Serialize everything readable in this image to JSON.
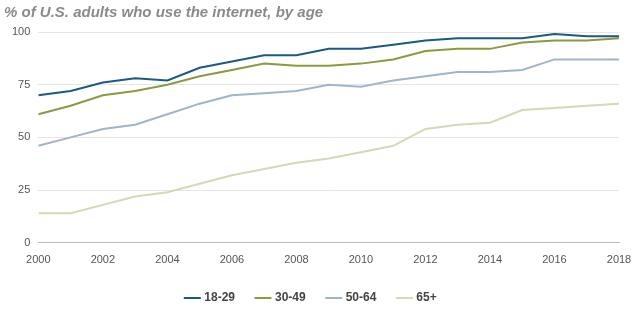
{
  "chart_data": {
    "type": "line",
    "title": "% of U.S. adults who use the internet, by age",
    "x": [
      2000,
      2001,
      2002,
      2003,
      2004,
      2005,
      2006,
      2007,
      2008,
      2009,
      2010,
      2011,
      2012,
      2013,
      2014,
      2015,
      2016,
      2017,
      2018
    ],
    "series": [
      {
        "name": "18-29",
        "color": "#1b5a82",
        "values": [
          70,
          72,
          76,
          78,
          77,
          83,
          86,
          89,
          89,
          92,
          92,
          94,
          96,
          97,
          97,
          97,
          99,
          98,
          98
        ]
      },
      {
        "name": "30-49",
        "color": "#8a9a3f",
        "values": [
          61,
          65,
          70,
          72,
          75,
          79,
          82,
          85,
          84,
          84,
          85,
          87,
          91,
          92,
          92,
          95,
          96,
          96,
          97
        ]
      },
      {
        "name": "50-64",
        "color": "#9fb5cb",
        "values": [
          46,
          50,
          54,
          56,
          61,
          66,
          70,
          71,
          72,
          75,
          74,
          77,
          79,
          81,
          81,
          82,
          87,
          87,
          87
        ]
      },
      {
        "name": "65+",
        "color": "#d3d9b3",
        "values": [
          14,
          14,
          18,
          22,
          24,
          28,
          32,
          35,
          38,
          40,
          43,
          46,
          54,
          56,
          57,
          63,
          64,
          65,
          66
        ]
      }
    ],
    "xlim": [
      2000,
      2018
    ],
    "xticks": [
      2000,
      2002,
      2004,
      2006,
      2008,
      2010,
      2012,
      2014,
      2016,
      2018
    ],
    "ylim": [
      0,
      100
    ],
    "yticks": [
      0,
      25,
      50,
      75,
      100
    ],
    "grid": true,
    "legend": "bottom"
  }
}
